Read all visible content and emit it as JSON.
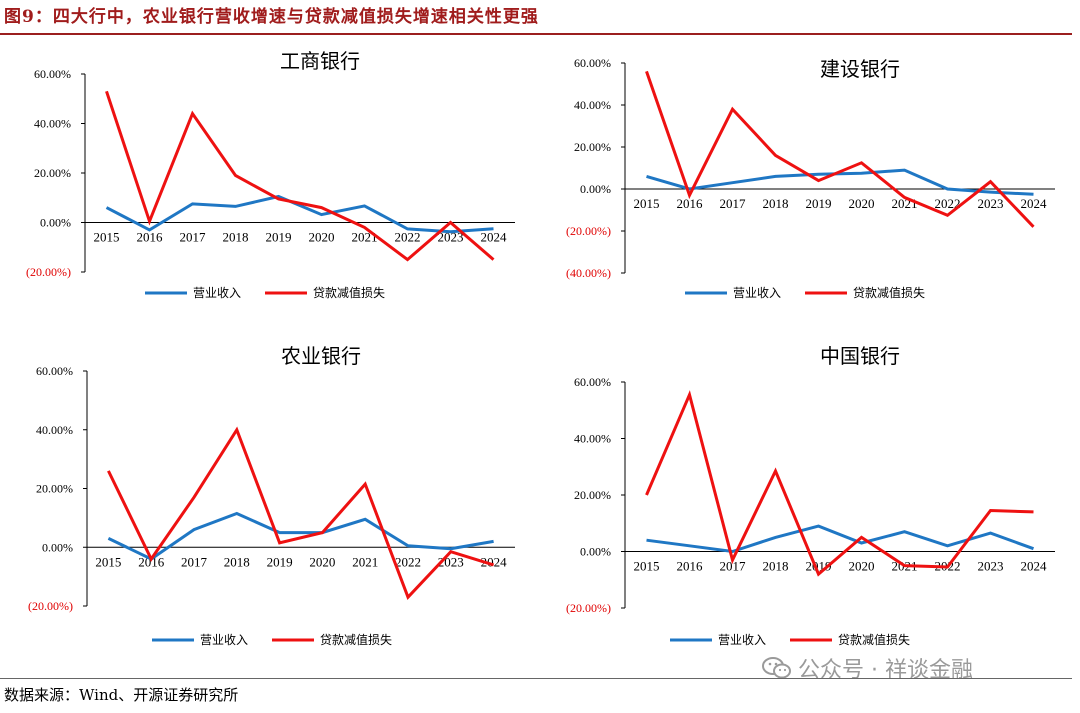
{
  "figure_title": "图9：四大行中，农业银行营收增速与贷款减值损失增速相关性更强",
  "source_note": "数据来源：Wind、开源证券研究所",
  "watermark": "公众号 · 祥谈金融",
  "colors": {
    "revenue": "#1f77c4",
    "impairment": "#ee1111",
    "negative_tick": "#e00000",
    "title_bar": "#a01c1c"
  },
  "chart_data": [
    {
      "type": "line",
      "title": "工商银行",
      "x": [
        "2015",
        "2016",
        "2017",
        "2018",
        "2019",
        "2020",
        "2021",
        "2022",
        "2023",
        "2024"
      ],
      "ylim": [
        -20,
        60
      ],
      "yticks": [
        -20,
        0,
        20,
        40,
        60
      ],
      "ytick_labels": [
        "(20.00%)",
        "0.00%",
        "20.00%",
        "40.00%",
        "60.00%"
      ],
      "legend_position": "bottom",
      "series": [
        {
          "name": "营业收入",
          "values": [
            6,
            -3,
            7.5,
            6.5,
            10.5,
            3.2,
            6.7,
            -2.6,
            -3.7,
            -2.5
          ]
        },
        {
          "name": "贷款减值损失",
          "values": [
            53,
            0.5,
            44,
            19,
            9.5,
            6,
            -2,
            -15,
            0,
            -15
          ]
        }
      ]
    },
    {
      "type": "line",
      "title": "建设银行",
      "x": [
        "2015",
        "2016",
        "2017",
        "2018",
        "2019",
        "2020",
        "2021",
        "2022",
        "2023",
        "2024"
      ],
      "ylim": [
        -40,
        60
      ],
      "yticks": [
        -40,
        -20,
        0,
        20,
        40,
        60
      ],
      "ytick_labels": [
        "(40.00%)",
        "(20.00%)",
        "0.00%",
        "20.00%",
        "40.00%",
        "60.00%"
      ],
      "legend_position": "bottom",
      "series": [
        {
          "name": "营业收入",
          "values": [
            6,
            0,
            3,
            6,
            7,
            7.5,
            9,
            0,
            -1.5,
            -2.5
          ]
        },
        {
          "name": "贷款减值损失",
          "values": [
            56,
            -3,
            38,
            16,
            4,
            12.5,
            -4,
            -12.5,
            3.5,
            -18
          ]
        }
      ]
    },
    {
      "type": "line",
      "title": "农业银行",
      "x": [
        "2015",
        "2016",
        "2017",
        "2018",
        "2019",
        "2020",
        "2021",
        "2022",
        "2023",
        "2024"
      ],
      "ylim": [
        -20,
        60
      ],
      "yticks": [
        -20,
        0,
        20,
        40,
        60
      ],
      "ytick_labels": [
        "(20.00%)",
        "0.00%",
        "20.00%",
        "40.00%",
        "60.00%"
      ],
      "legend_position": "bottom",
      "series": [
        {
          "name": "营业收入",
          "values": [
            3,
            -4,
            6,
            11.5,
            5,
            5,
            9.5,
            0.5,
            -0.5,
            2
          ]
        },
        {
          "name": "贷款减值损失",
          "values": [
            26,
            -4,
            17,
            40,
            1.5,
            5,
            21.5,
            -17,
            -1.5,
            -6
          ]
        }
      ]
    },
    {
      "type": "line",
      "title": "中国银行",
      "x": [
        "2015",
        "2016",
        "2017",
        "2018",
        "2019",
        "2020",
        "2021",
        "2022",
        "2023",
        "2024"
      ],
      "ylim": [
        -20,
        60
      ],
      "yticks": [
        -20,
        0,
        20,
        40,
        60
      ],
      "ytick_labels": [
        "(20.00%)",
        "0.00%",
        "20.00%",
        "40.00%",
        "60.00%"
      ],
      "legend_position": "bottom",
      "series": [
        {
          "name": "营业收入",
          "values": [
            4,
            2,
            0,
            5,
            9,
            3,
            7,
            2,
            6.5,
            1
          ]
        },
        {
          "name": "贷款减值损失",
          "values": [
            20,
            55.5,
            -3,
            28.5,
            -8,
            5,
            -5,
            -5.5,
            14.5,
            14
          ]
        }
      ]
    }
  ]
}
